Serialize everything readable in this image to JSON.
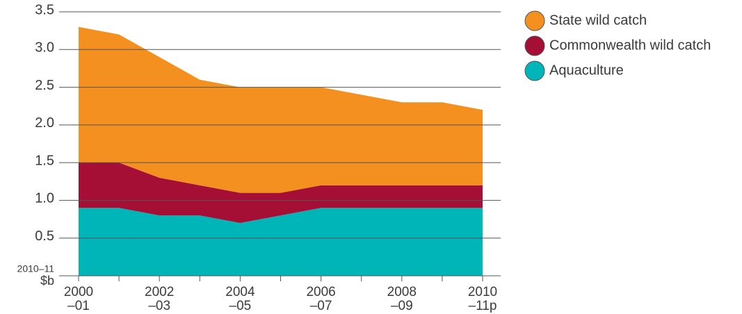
{
  "chart_data": {
    "type": "stacked_area",
    "y_label": [
      "2010–11",
      "$b"
    ],
    "categories": [
      [
        "2000",
        "–01"
      ],
      null,
      [
        "2002",
        "–03"
      ],
      null,
      [
        "2004",
        "–05"
      ],
      null,
      [
        "2006",
        "–07"
      ],
      null,
      [
        "2008",
        "–09"
      ],
      null,
      [
        "2010",
        "–11p"
      ]
    ],
    "series": [
      {
        "name": "State wild catch",
        "color": "#f39020",
        "values": [
          1.8,
          1.7,
          1.6,
          1.4,
          1.4,
          1.4,
          1.3,
          1.2,
          1.1,
          1.1,
          1.0
        ]
      },
      {
        "name": "Commonwealth wild catch",
        "color": "#a50e35",
        "values": [
          0.6,
          0.6,
          0.5,
          0.4,
          0.4,
          0.3,
          0.3,
          0.3,
          0.3,
          0.3,
          0.3
        ]
      },
      {
        "name": "Aquaculture",
        "color": "#00b5b8",
        "values": [
          0.9,
          0.9,
          0.8,
          0.8,
          0.7,
          0.8,
          0.9,
          0.9,
          0.9,
          0.9,
          0.9
        ]
      }
    ],
    "ylim": [
      0,
      3.5
    ],
    "yticks": [
      {
        "value": 0.5,
        "label": "0.5"
      },
      {
        "value": 1,
        "label": "1.0"
      },
      {
        "value": 1.5,
        "label": "1.5"
      },
      {
        "value": 2,
        "label": "2.0"
      },
      {
        "value": 2.5,
        "label": "2.5"
      },
      {
        "value": 3,
        "label": "3.0"
      },
      {
        "value": 3.5,
        "label": "3.5"
      }
    ],
    "grid": true
  }
}
